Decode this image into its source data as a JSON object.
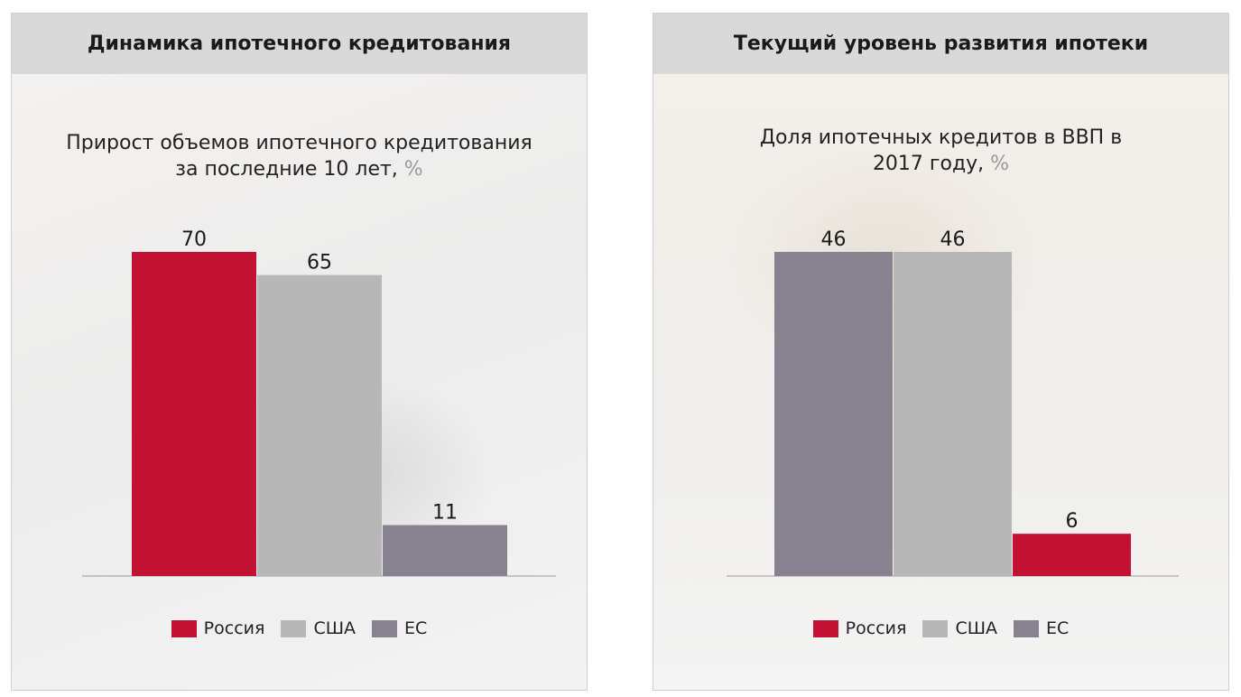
{
  "colors": {
    "russia": "#c31134",
    "usa": "#b7b7b7",
    "eu": "#878190"
  },
  "left": {
    "header": "Динамика ипотечного кредитования",
    "subtitle_line1": "Прирост объемов ипотечного кредитования",
    "subtitle_line2": "за последние 10 лет, ",
    "subtitle_unit": "%",
    "legend": [
      "Россия",
      "США",
      "ЕС"
    ]
  },
  "right": {
    "header": "Текущий уровень развития ипотеки",
    "subtitle_line1": "Доля ипотечных кредитов в ВВП в",
    "subtitle_line2": "2017 году, ",
    "subtitle_unit": "%",
    "legend": [
      "Россия",
      "США",
      "ЕС"
    ]
  },
  "chart_data": [
    {
      "type": "bar",
      "title": "Прирост объемов ипотечного кредитования за последние 10 лет, %",
      "categories": [
        "Россия",
        "США",
        "ЕС"
      ],
      "values": [
        70,
        65,
        11
      ],
      "value_labels": [
        "70",
        "65",
        "11"
      ],
      "bar_colors": [
        "#c31134",
        "#b7b7b7",
        "#878190"
      ],
      "legend": [
        "Россия",
        "США",
        "ЕС"
      ],
      "legend_position": "bottom",
      "grid": false
    },
    {
      "type": "bar",
      "title": "Доля ипотечных кредитов в ВВП в 2017 году, %",
      "categories": [
        "ЕС",
        "США",
        "Россия"
      ],
      "values": [
        46,
        46,
        6
      ],
      "value_labels": [
        "46",
        "46",
        "6"
      ],
      "bar_colors": [
        "#878190",
        "#b7b7b7",
        "#c31134"
      ],
      "legend": [
        "Россия",
        "США",
        "ЕС"
      ],
      "legend_position": "bottom",
      "grid": false
    }
  ]
}
